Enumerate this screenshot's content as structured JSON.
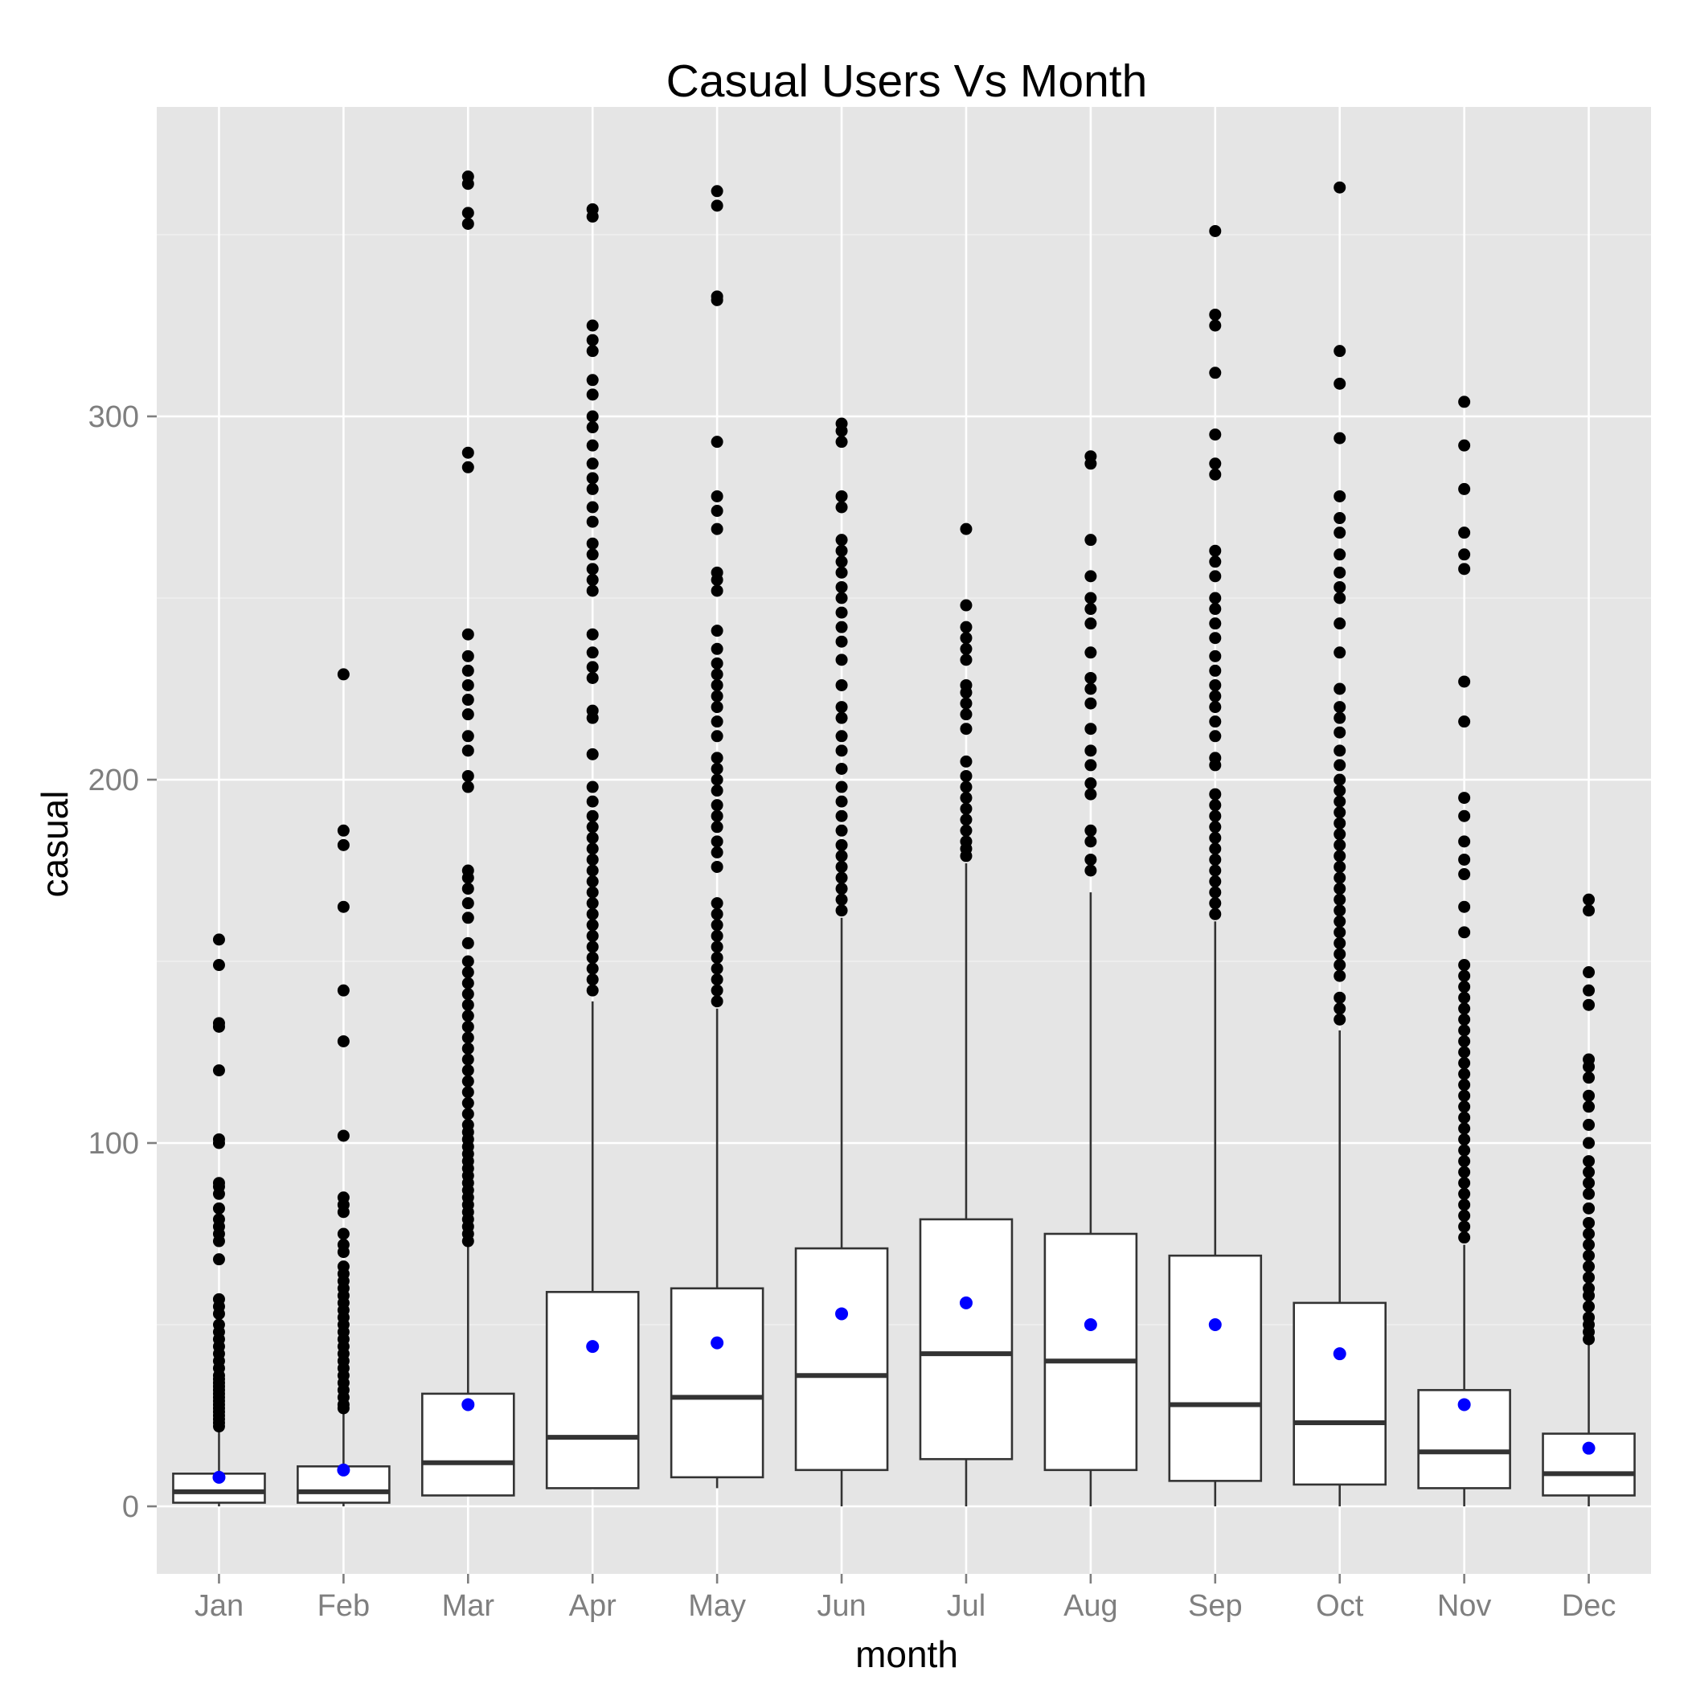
{
  "chart_data": {
    "type": "box",
    "title": "Casual Users Vs Month",
    "xlabel": "month",
    "ylabel": "casual",
    "ylim": [
      -18,
      385
    ],
    "yticks": [
      0,
      100,
      200,
      300
    ],
    "grid": true,
    "legend": "none",
    "colors": {
      "panel": "#e5e5e5",
      "grid_major": "#ffffff",
      "grid_minor": "#f2f2f2",
      "box_fill": "#ffffff",
      "box_stroke": "#333333",
      "outlier": "#000000",
      "mean_point": "#0000ff",
      "tick_text": "#7f7f7f"
    },
    "categories": [
      "Jan",
      "Feb",
      "Mar",
      "Apr",
      "May",
      "Jun",
      "Jul",
      "Aug",
      "Sep",
      "Oct",
      "Nov",
      "Dec"
    ],
    "boxes": [
      {
        "min": 0,
        "q1": 1,
        "median": 4,
        "q3": 9,
        "max": 21,
        "mean": 8,
        "outliers": [
          22,
          23,
          24,
          25,
          26,
          27,
          28,
          29,
          30,
          31,
          32,
          33,
          34,
          35,
          36,
          38,
          40,
          42,
          44,
          46,
          48,
          50,
          53,
          55,
          57,
          68,
          73,
          75,
          77,
          79,
          82,
          86,
          88,
          89,
          100,
          101,
          120,
          132,
          133,
          149,
          156
        ]
      },
      {
        "min": 0,
        "q1": 1,
        "median": 4,
        "q3": 11,
        "max": 26,
        "mean": 10,
        "outliers": [
          27,
          28,
          30,
          32,
          34,
          36,
          38,
          40,
          42,
          44,
          46,
          48,
          50,
          52,
          54,
          56,
          58,
          60,
          62,
          64,
          66,
          70,
          72,
          75,
          81,
          83,
          85,
          102,
          128,
          142,
          165,
          182,
          186,
          229
        ]
      },
      {
        "min": 3,
        "q1": 3,
        "median": 12,
        "q3": 31,
        "max": 72,
        "mean": 28,
        "outliers": [
          73,
          75,
          77,
          79,
          81,
          83,
          85,
          87,
          89,
          91,
          93,
          95,
          97,
          99,
          101,
          103,
          105,
          108,
          111,
          114,
          117,
          120,
          123,
          126,
          129,
          132,
          135,
          138,
          141,
          144,
          147,
          150,
          155,
          162,
          166,
          170,
          173,
          175,
          198,
          201,
          208,
          212,
          218,
          222,
          226,
          230,
          234,
          240,
          286,
          290,
          353,
          356,
          364,
          366
        ]
      },
      {
        "min": 5,
        "q1": 5,
        "median": 19,
        "q3": 59,
        "max": 139,
        "mean": 44,
        "outliers": [
          142,
          145,
          148,
          151,
          154,
          157,
          160,
          163,
          166,
          169,
          172,
          175,
          178,
          181,
          184,
          187,
          190,
          194,
          198,
          207,
          217,
          219,
          228,
          231,
          235,
          240,
          252,
          255,
          258,
          262,
          265,
          271,
          275,
          280,
          283,
          287,
          292,
          297,
          300,
          306,
          310,
          318,
          321,
          325,
          355,
          357
        ]
      },
      {
        "min": 5,
        "q1": 8,
        "median": 30,
        "q3": 60,
        "max": 137,
        "mean": 45,
        "outliers": [
          139,
          142,
          145,
          148,
          151,
          154,
          157,
          160,
          163,
          166,
          176,
          180,
          183,
          187,
          190,
          193,
          197,
          200,
          203,
          206,
          212,
          216,
          220,
          223,
          226,
          229,
          232,
          236,
          241,
          252,
          255,
          257,
          269,
          274,
          278,
          293,
          332,
          333,
          358,
          362
        ]
      },
      {
        "min": 0,
        "q1": 10,
        "median": 36,
        "q3": 71,
        "max": 162,
        "mean": 53,
        "outliers": [
          164,
          167,
          170,
          173,
          176,
          179,
          182,
          186,
          190,
          194,
          198,
          203,
          208,
          212,
          217,
          220,
          226,
          233,
          238,
          242,
          246,
          250,
          253,
          257,
          260,
          263,
          266,
          275,
          278,
          293,
          296,
          298
        ]
      },
      {
        "min": 0,
        "q1": 13,
        "median": 42,
        "q3": 79,
        "max": 177,
        "mean": 56,
        "outliers": [
          179,
          181,
          183,
          186,
          189,
          192,
          195,
          198,
          201,
          205,
          214,
          218,
          221,
          224,
          226,
          233,
          236,
          239,
          242,
          248,
          269
        ]
      },
      {
        "min": 0,
        "q1": 10,
        "median": 40,
        "q3": 75,
        "max": 169,
        "mean": 50,
        "outliers": [
          175,
          178,
          183,
          186,
          196,
          199,
          204,
          208,
          214,
          221,
          225,
          228,
          235,
          243,
          247,
          250,
          256,
          266,
          287,
          289
        ]
      },
      {
        "min": 0,
        "q1": 7,
        "median": 28,
        "q3": 69,
        "max": 161,
        "mean": 50,
        "outliers": [
          163,
          166,
          169,
          172,
          175,
          178,
          181,
          184,
          187,
          190,
          193,
          196,
          204,
          206,
          212,
          216,
          220,
          223,
          226,
          230,
          234,
          239,
          243,
          247,
          250,
          256,
          260,
          263,
          284,
          287,
          295,
          312,
          325,
          328,
          351
        ]
      },
      {
        "min": 0,
        "q1": 6,
        "median": 23,
        "q3": 56,
        "max": 131,
        "mean": 42,
        "outliers": [
          134,
          137,
          140,
          146,
          149,
          152,
          155,
          158,
          161,
          164,
          167,
          170,
          173,
          176,
          179,
          182,
          185,
          188,
          191,
          194,
          197,
          200,
          204,
          208,
          213,
          217,
          220,
          225,
          235,
          243,
          250,
          253,
          257,
          262,
          268,
          272,
          278,
          294,
          309,
          318,
          363
        ]
      },
      {
        "min": 0,
        "q1": 5,
        "median": 15,
        "q3": 32,
        "max": 72,
        "mean": 28,
        "outliers": [
          74,
          77,
          80,
          83,
          86,
          89,
          92,
          95,
          98,
          101,
          104,
          107,
          110,
          113,
          116,
          119,
          122,
          125,
          128,
          131,
          134,
          137,
          140,
          143,
          146,
          149,
          158,
          165,
          174,
          178,
          183,
          190,
          195,
          216,
          227,
          258,
          262,
          268,
          280,
          292,
          304
        ]
      },
      {
        "min": 0,
        "q1": 3,
        "median": 9,
        "q3": 20,
        "max": 45,
        "mean": 16,
        "outliers": [
          46,
          48,
          50,
          52,
          55,
          58,
          60,
          63,
          66,
          69,
          72,
          75,
          78,
          82,
          86,
          89,
          92,
          95,
          100,
          105,
          110,
          113,
          118,
          121,
          123,
          138,
          142,
          147,
          164,
          167
        ]
      }
    ]
  }
}
